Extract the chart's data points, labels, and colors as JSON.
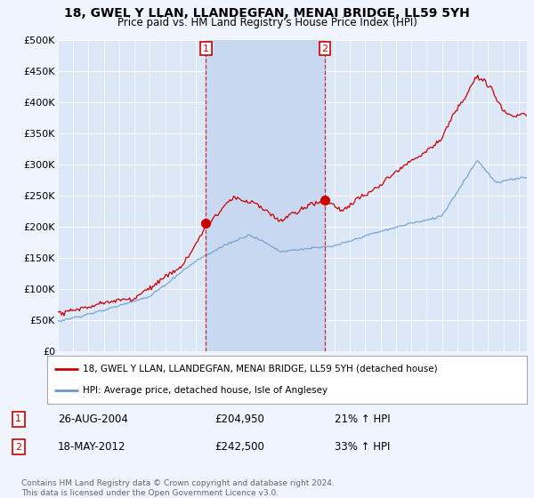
{
  "title": "18, GWEL Y LLAN, LLANDEGFAN, MENAI BRIDGE, LL59 5YH",
  "subtitle": "Price paid vs. HM Land Registry's House Price Index (HPI)",
  "xlim_start": 1995.0,
  "xlim_end": 2025.5,
  "ylim": [
    0,
    500000
  ],
  "yticks": [
    0,
    50000,
    100000,
    150000,
    200000,
    250000,
    300000,
    350000,
    400000,
    450000,
    500000
  ],
  "ytick_labels": [
    "£0",
    "£50K",
    "£100K",
    "£150K",
    "£200K",
    "£250K",
    "£300K",
    "£350K",
    "£400K",
    "£450K",
    "£500K"
  ],
  "xticks": [
    1995,
    1996,
    1997,
    1998,
    1999,
    2000,
    2001,
    2002,
    2003,
    2004,
    2005,
    2006,
    2007,
    2008,
    2009,
    2010,
    2011,
    2012,
    2013,
    2014,
    2015,
    2016,
    2017,
    2018,
    2019,
    2020,
    2021,
    2022,
    2023,
    2024,
    2025
  ],
  "background_color": "#f0f4ff",
  "plot_bg_color": "#dce8f8",
  "shade_color": "#c8d8f0",
  "grid_color": "#ffffff",
  "red_color": "#cc0000",
  "blue_color": "#6699cc",
  "sale1_x": 2004.65,
  "sale1_y": 204950,
  "sale2_x": 2012.38,
  "sale2_y": 242500,
  "legend_line1": "18, GWEL Y LLAN, LLANDEGFAN, MENAI BRIDGE, LL59 5YH (detached house)",
  "legend_line2": "HPI: Average price, detached house, Isle of Anglesey",
  "annotation1_date": "26-AUG-2004",
  "annotation1_price": "£204,950",
  "annotation1_hpi": "21% ↑ HPI",
  "annotation2_date": "18-MAY-2012",
  "annotation2_price": "£242,500",
  "annotation2_hpi": "33% ↑ HPI",
  "footer": "Contains HM Land Registry data © Crown copyright and database right 2024.\nThis data is licensed under the Open Government Licence v3.0."
}
